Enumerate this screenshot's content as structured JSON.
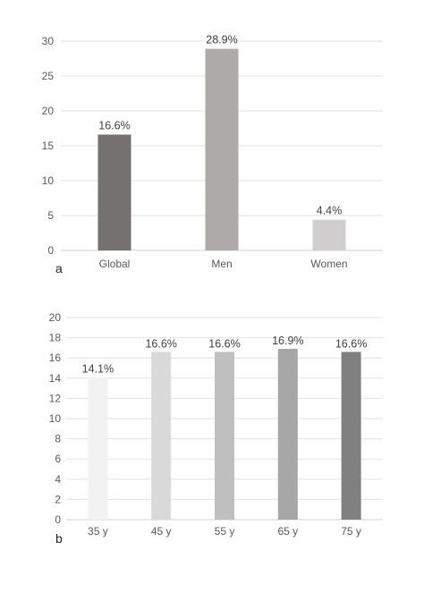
{
  "chart_data": [
    {
      "type": "bar",
      "panel_label": "a",
      "categories": [
        "Global",
        "Men",
        "Women"
      ],
      "values": [
        16.6,
        28.9,
        4.4
      ],
      "data_labels": [
        "16.6%",
        "28.9%",
        "4.4%"
      ],
      "colors": [
        "#767171",
        "#aeaaaa",
        "#d0cece"
      ],
      "ylim": [
        0,
        30
      ],
      "yticks": [
        0,
        5,
        10,
        15,
        20,
        25,
        30
      ],
      "grid": true,
      "legend": "none"
    },
    {
      "type": "bar",
      "panel_label": "b",
      "categories": [
        "35 y",
        "45 y",
        "55 y",
        "65 y",
        "75  y"
      ],
      "values": [
        14.1,
        16.6,
        16.6,
        16.9,
        16.6
      ],
      "data_labels": [
        "14.1%",
        "16.6%",
        "16.6%",
        "16.9%",
        "16.6%"
      ],
      "colors": [
        "#f2f2f2",
        "#d9d9d9",
        "#bfbfbf",
        "#a6a6a6",
        "#808080"
      ],
      "ylim": [
        0,
        20
      ],
      "yticks": [
        0,
        2,
        4,
        6,
        8,
        10,
        12,
        14,
        16,
        18,
        20
      ],
      "grid": true,
      "legend": "none"
    }
  ]
}
